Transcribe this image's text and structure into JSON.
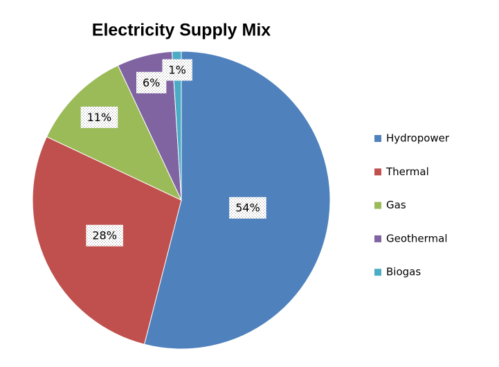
{
  "chart_data": {
    "type": "pie",
    "title": "Electricity Supply Mix",
    "categories": [
      "Hydropower",
      "Thermal",
      "Gas",
      "Geothermal",
      "Biogas"
    ],
    "values": [
      54,
      28,
      11,
      6,
      1
    ],
    "value_labels": [
      "54%",
      "28%",
      "11%",
      "6%",
      "1%"
    ],
    "colors": [
      "#4f81bd",
      "#c0504d",
      "#9bbb59",
      "#8064a2",
      "#4bacc6"
    ],
    "legend": "right"
  }
}
